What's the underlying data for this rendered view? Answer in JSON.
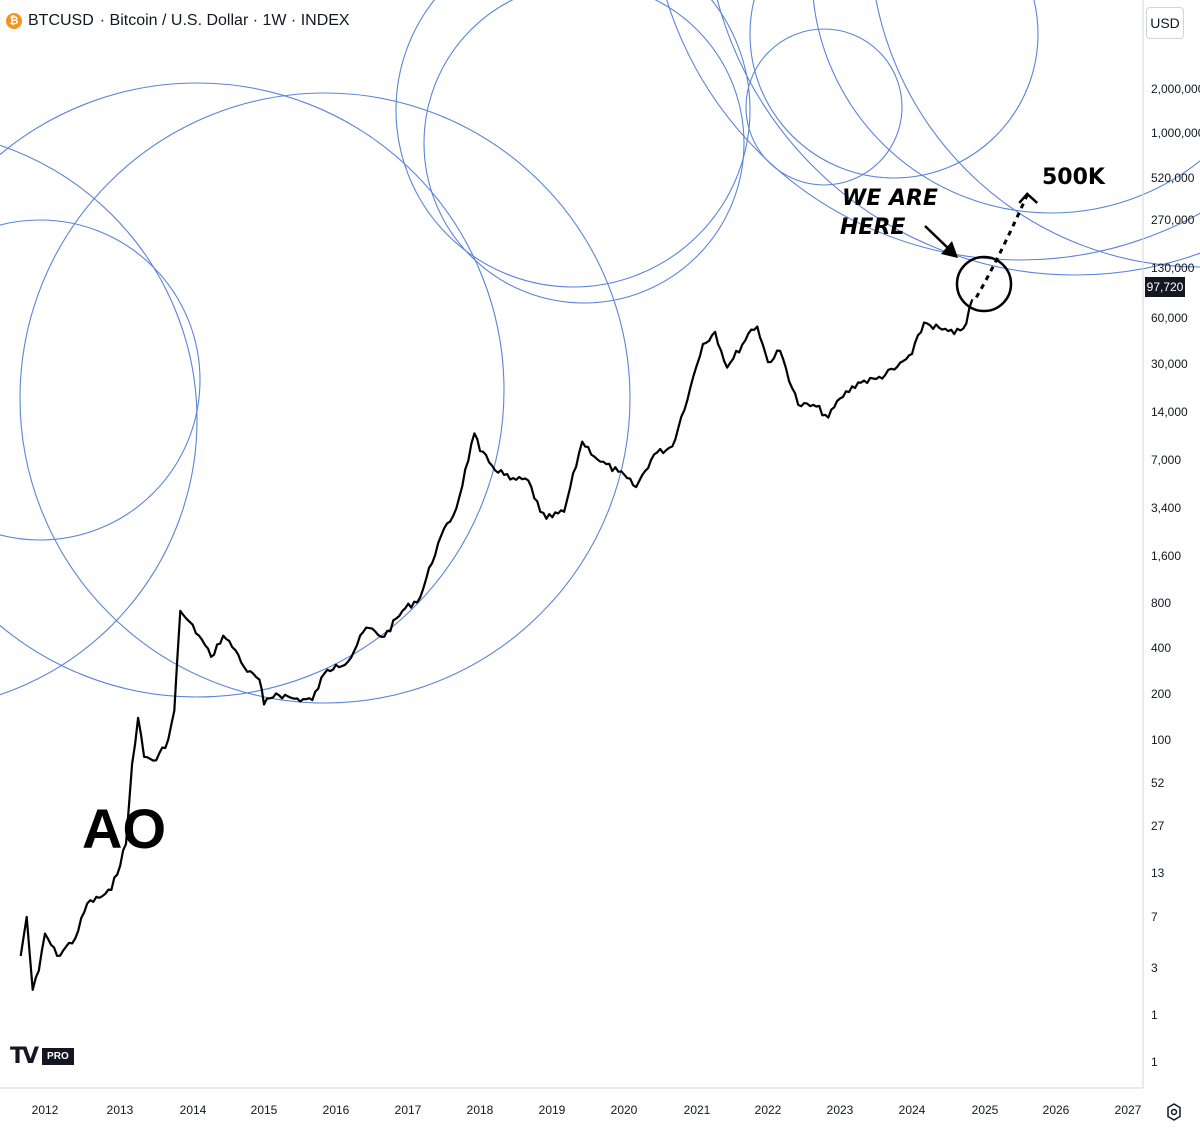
{
  "header": {
    "symbol": "BTCUSD",
    "description": "· Bitcoin / U.S. Dollar · 1W · INDEX",
    "badge_icon": "bitcoin-icon",
    "badge_glyph": "₿"
  },
  "toolbar": {
    "currency_label": "USD",
    "settings_icon": "settings-icon"
  },
  "logo": {
    "pro_label": "PRO"
  },
  "colors": {
    "circles": "#5b84d9",
    "price_line": "#000000",
    "price_tag_bg": "#131722",
    "axis_text": "#131722",
    "grid_border": "#d1d4dc"
  },
  "chart_data": {
    "type": "line",
    "y_scale": "log",
    "y_ticks": [
      "2,000,000",
      "1,000,000",
      "520,000",
      "270,000",
      "130,000",
      "60,000",
      "30,000",
      "14,000",
      "7,000",
      "3,400",
      "1,600",
      "800",
      "400",
      "200",
      "100",
      "52",
      "27",
      "13",
      "7",
      "3",
      "1",
      "1"
    ],
    "x_ticks": [
      "2012",
      "2013",
      "2014",
      "2015",
      "2016",
      "2017",
      "2018",
      "2019",
      "2020",
      "2021",
      "2022",
      "2023",
      "2024",
      "2025",
      "2026",
      "2027"
    ],
    "current_price_label": "97,720",
    "series": [
      {
        "values": [
          [
            "2011-09",
            5
          ],
          [
            "2011-10",
            9
          ],
          [
            "2011-11",
            3
          ],
          [
            "2011-12",
            4
          ],
          [
            "2012-01",
            7
          ],
          [
            "2012-03",
            5
          ],
          [
            "2012-06",
            6.5
          ],
          [
            "2012-08",
            11
          ],
          [
            "2012-10",
            12
          ],
          [
            "2012-12",
            13.5
          ],
          [
            "2013-02",
            27
          ],
          [
            "2013-03",
            90
          ],
          [
            "2013-04",
            180
          ],
          [
            "2013-05",
            100
          ],
          [
            "2013-07",
            95
          ],
          [
            "2013-09",
            130
          ],
          [
            "2013-10",
            200
          ],
          [
            "2013-11",
            900
          ],
          [
            "2013-12",
            800
          ],
          [
            "2014-02",
            620
          ],
          [
            "2014-04",
            450
          ],
          [
            "2014-06",
            620
          ],
          [
            "2014-08",
            500
          ],
          [
            "2014-10",
            360
          ],
          [
            "2014-12",
            320
          ],
          [
            "2015-01",
            220
          ],
          [
            "2015-03",
            260
          ],
          [
            "2015-06",
            240
          ],
          [
            "2015-09",
            235
          ],
          [
            "2015-11",
            350
          ],
          [
            "2016-01",
            400
          ],
          [
            "2016-03",
            420
          ],
          [
            "2016-06",
            700
          ],
          [
            "2016-09",
            610
          ],
          [
            "2016-12",
            900
          ],
          [
            "2017-03",
            1100
          ],
          [
            "2017-06",
            2500
          ],
          [
            "2017-09",
            4200
          ],
          [
            "2017-12",
            13000
          ],
          [
            "2018-01",
            10000
          ],
          [
            "2018-03",
            8000
          ],
          [
            "2018-06",
            6500
          ],
          [
            "2018-09",
            6400
          ],
          [
            "2018-11",
            4000
          ],
          [
            "2018-12",
            3600
          ],
          [
            "2019-03",
            4000
          ],
          [
            "2019-06",
            11500
          ],
          [
            "2019-09",
            8500
          ],
          [
            "2019-12",
            7300
          ],
          [
            "2020-03",
            5800
          ],
          [
            "2020-06",
            9500
          ],
          [
            "2020-09",
            10700
          ],
          [
            "2020-12",
            26000
          ],
          [
            "2021-02",
            50000
          ],
          [
            "2021-04",
            60000
          ],
          [
            "2021-06",
            35000
          ],
          [
            "2021-07",
            40000
          ],
          [
            "2021-10",
            62000
          ],
          [
            "2021-11",
            65000
          ],
          [
            "2022-01",
            38000
          ],
          [
            "2022-03",
            45000
          ],
          [
            "2022-06",
            20000
          ],
          [
            "2022-09",
            19500
          ],
          [
            "2022-11",
            16500
          ],
          [
            "2023-01",
            22000
          ],
          [
            "2023-04",
            28000
          ],
          [
            "2023-07",
            29500
          ],
          [
            "2023-10",
            34000
          ],
          [
            "2024-01",
            43000
          ],
          [
            "2024-03",
            69000
          ],
          [
            "2024-06",
            62000
          ],
          [
            "2024-08",
            58000
          ],
          [
            "2024-10",
            68000
          ],
          [
            "2024-11",
            97720
          ]
        ]
      },
      {
        "values": [
          [
            "2024-12",
            97720
          ],
          [
            "2025-08",
            500000
          ]
        ]
      }
    ]
  },
  "annotations": {
    "we_are_here_line1": "WE ARE",
    "we_are_here_line2": "HERE",
    "target_label": "500K",
    "author_mark": "AO"
  }
}
